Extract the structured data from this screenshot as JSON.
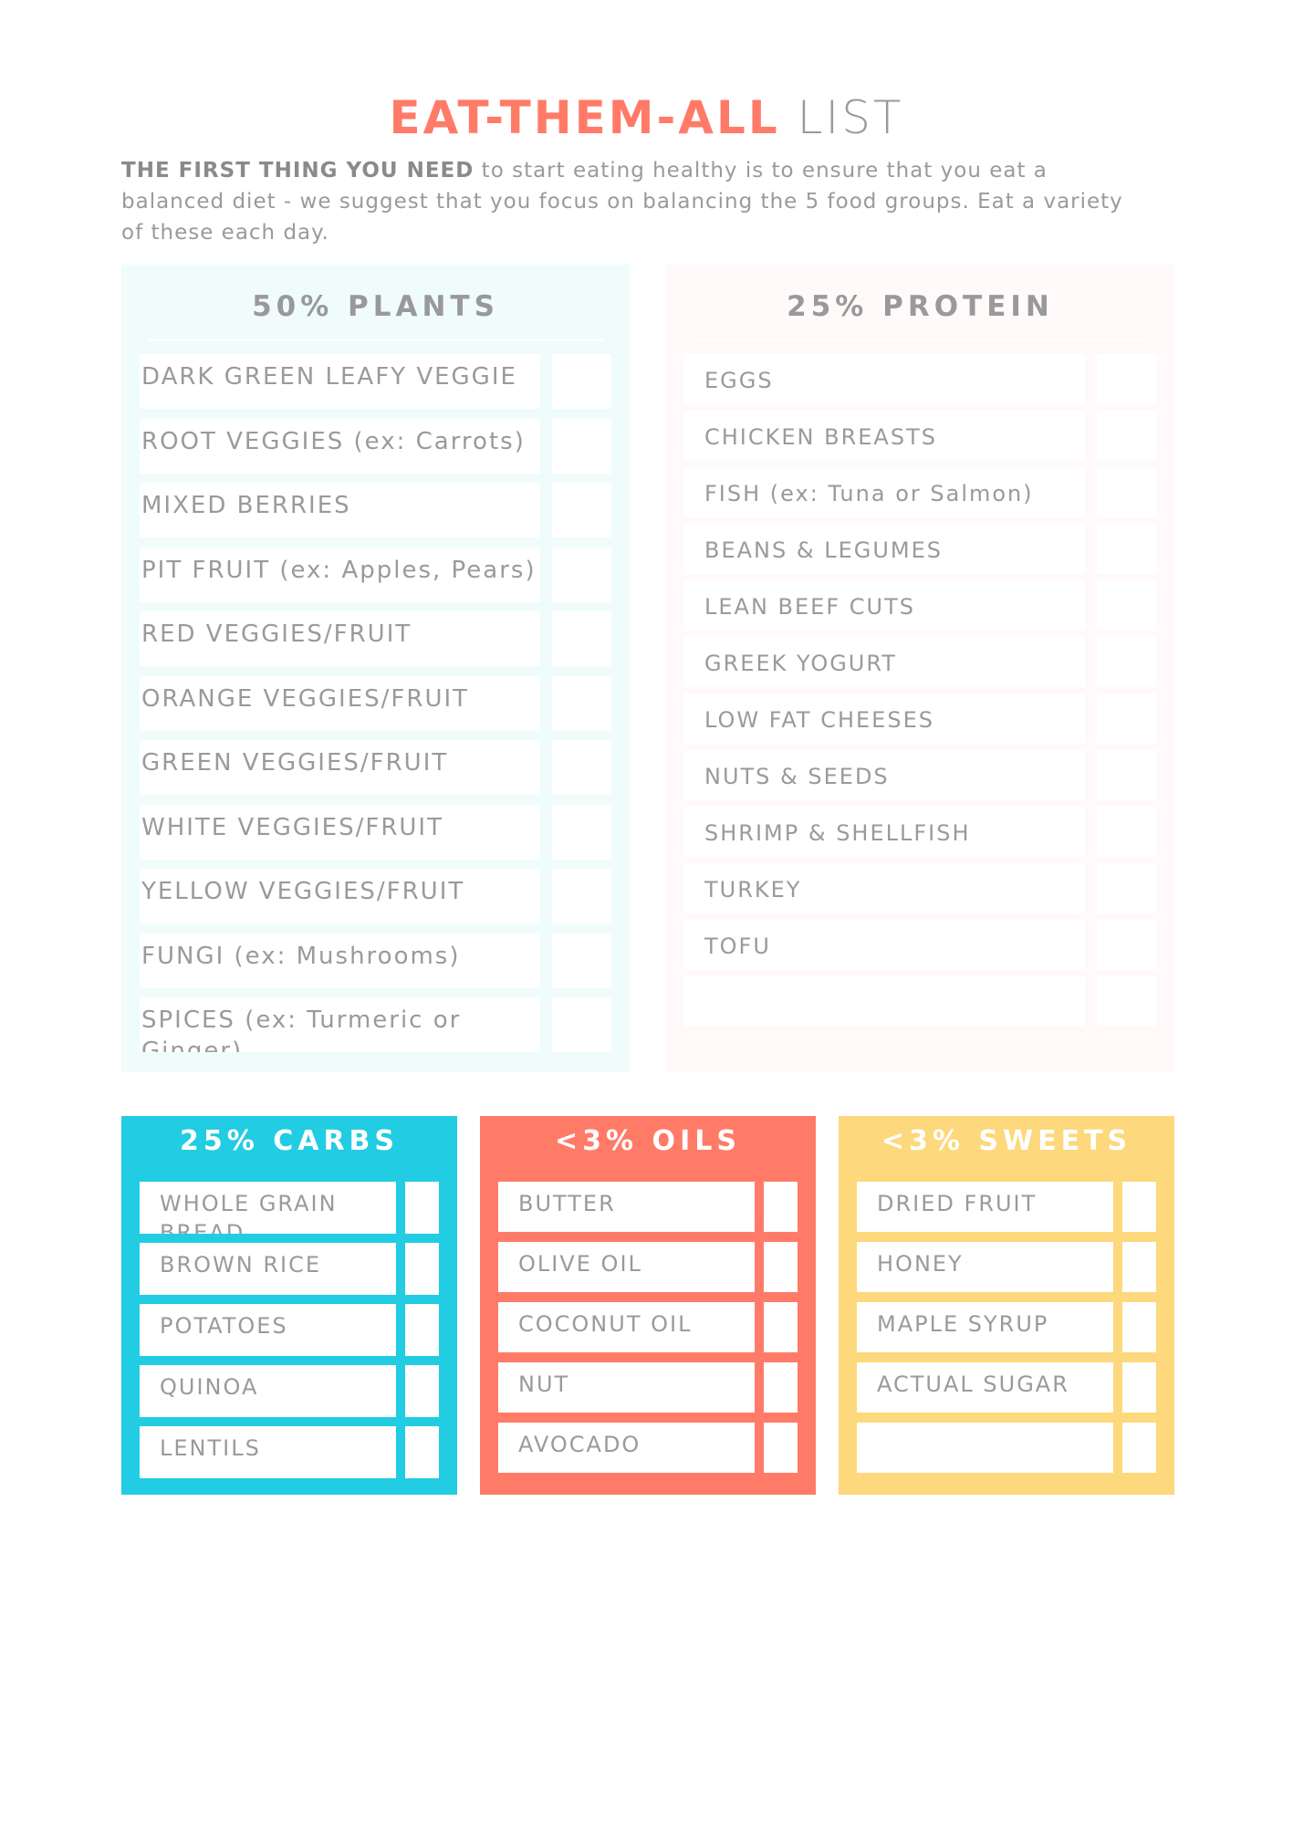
{
  "title": {
    "highlight": "EAT-THEM-ALL",
    "rest": "LIST"
  },
  "intro": {
    "bold": "THE FIRST THING YOU NEED",
    "text": " to start eating healthy is to ensure that you eat a balanced diet - we suggest that you focus on balancing the 5 food groups. Eat a variety of these each day."
  },
  "colors": {
    "plants": "#F0FCFC",
    "protein": "#FFFAF9",
    "carbs": "#22CCE2",
    "oils": "#FF7B68",
    "sweets": "#FDD87C",
    "text": "#9A9A9A"
  },
  "plants": {
    "heading": "50% PLANTS",
    "items": [
      "DARK GREEN LEAFY VEGGIE",
      "ROOT VEGGIES (ex: Carrots)",
      "MIXED BERRIES",
      "PIT FRUIT (ex: Apples, Pears)",
      "RED VEGGIES/FRUIT",
      "ORANGE VEGGIES/FRUIT",
      "GREEN VEGGIES/FRUIT",
      "WHITE VEGGIES/FRUIT",
      "YELLOW VEGGIES/FRUIT",
      "FUNGI (ex: Mushrooms)",
      "SPICES (ex: Turmeric or Ginger)"
    ]
  },
  "protein": {
    "heading": "25% PROTEIN",
    "items": [
      "EGGS",
      "CHICKEN BREASTS",
      "FISH (ex: Tuna or Salmon)",
      "BEANS & LEGUMES",
      "LEAN BEEF CUTS",
      "GREEK YOGURT",
      "LOW FAT CHEESES",
      "NUTS & SEEDS",
      "SHRIMP & SHELLFISH",
      "TURKEY",
      "TOFU",
      ""
    ]
  },
  "carbs": {
    "heading": "25% CARBS",
    "items": [
      "WHOLE GRAIN BREAD",
      "BROWN RICE",
      "POTATOES",
      "QUINOA",
      "LENTILS"
    ]
  },
  "oils": {
    "heading": "<3% OILS",
    "items": [
      "BUTTER",
      "OLIVE OIL",
      "COCONUT OIL",
      "NUT",
      "AVOCADO"
    ]
  },
  "sweets": {
    "heading": "<3% SWEETS",
    "items": [
      "DRIED FRUIT",
      "HONEY",
      "MAPLE SYRUP",
      "ACTUAL SUGAR",
      ""
    ]
  }
}
